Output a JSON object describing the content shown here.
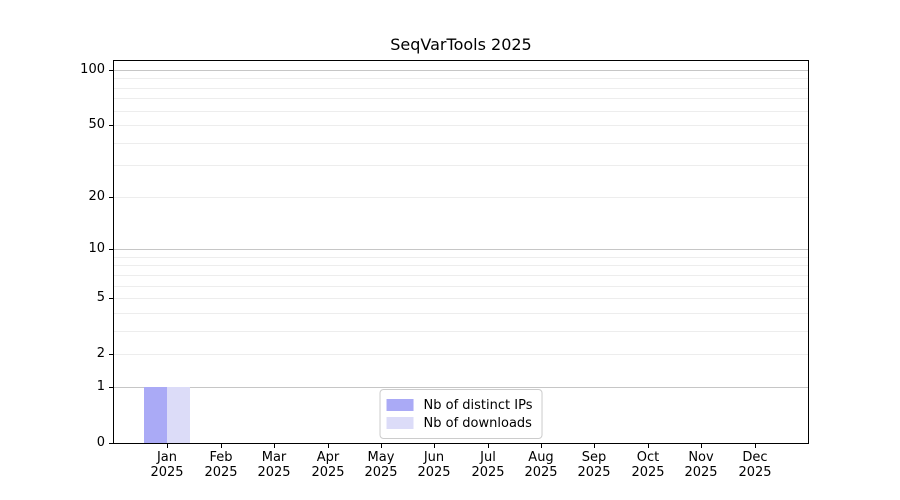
{
  "chart_data": {
    "type": "bar",
    "title": "SeqVarTools 2025",
    "categories": [
      "Jan 2025",
      "Feb 2025",
      "Mar 2025",
      "Apr 2025",
      "May 2025",
      "Jun 2025",
      "Jul 2025",
      "Aug 2025",
      "Sep 2025",
      "Oct 2025",
      "Nov 2025",
      "Dec 2025"
    ],
    "series": [
      {
        "name": "Nb of distinct IPs",
        "color": "#aaaaf6",
        "values": [
          1,
          0,
          0,
          0,
          0,
          0,
          0,
          0,
          0,
          0,
          0,
          0
        ]
      },
      {
        "name": "Nb of downloads",
        "color": "#dcdcf8",
        "values": [
          1,
          0,
          0,
          0,
          0,
          0,
          0,
          0,
          0,
          0,
          0,
          0
        ]
      }
    ],
    "xlabel": "",
    "ylabel": "",
    "yscale": "log1p",
    "ylim": [
      0,
      100
    ],
    "yticks": [
      0,
      1,
      2,
      5,
      10,
      20,
      50,
      100
    ],
    "y_major_gridlines": [
      1,
      10,
      100
    ],
    "y_minor_gridlines": [
      2,
      3,
      4,
      5,
      6,
      7,
      8,
      9,
      20,
      30,
      40,
      50,
      60,
      70,
      80,
      90
    ],
    "grid": true,
    "legend_position": "lower center inside",
    "colors": {
      "axis": "#000000",
      "grid_major": "#c6c6c6",
      "grid_minor": "#ededed",
      "legend_border": "#cccccc",
      "background": "#ffffff",
      "text": "#000000"
    }
  }
}
